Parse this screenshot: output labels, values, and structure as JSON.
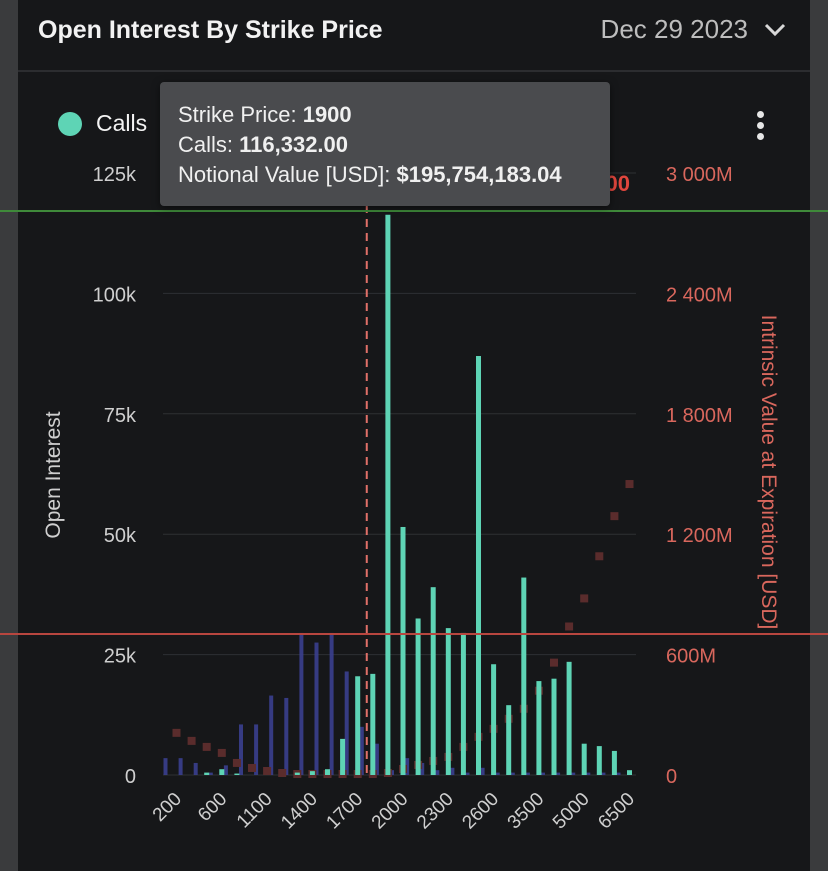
{
  "header": {
    "title": "Open Interest By Strike Price",
    "date": "Dec 29 2023"
  },
  "legend": {
    "calls_label": "Calls"
  },
  "tooltip": {
    "strike_label": "Strike Price: ",
    "strike_value": "1900",
    "calls_label": "Calls: ",
    "calls_value": "116,332.00",
    "notional_label": "Notional Value [USD]: ",
    "notional_value": "$195,754,183.04",
    "obscured_fragment": "00"
  },
  "colors": {
    "calls": "#5ed4b5",
    "puts": "#3a3f8f",
    "intrinsic": "#5a2c2c",
    "accent_red": "#d9675d",
    "green_line": "#3f8a3a"
  },
  "chart_data": {
    "type": "bar",
    "title": "Open Interest By Strike Price",
    "ylabel": "Open Interest",
    "y2label": "Intrinsic Value at Expiration [USD]",
    "ylim": [
      0,
      125000
    ],
    "y2lim": [
      0,
      3000
    ],
    "yticks": [
      {
        "v": 0,
        "label": "0"
      },
      {
        "v": 25000,
        "label": "25k"
      },
      {
        "v": 50000,
        "label": "50k"
      },
      {
        "v": 75000,
        "label": "75k"
      },
      {
        "v": 100000,
        "label": "100k"
      },
      {
        "v": 125000,
        "label": "125k"
      }
    ],
    "y2ticks": [
      {
        "v": 0,
        "label": "0"
      },
      {
        "v": 600,
        "label": "600M"
      },
      {
        "v": 1200,
        "label": "1 200M"
      },
      {
        "v": 1800,
        "label": "1 800M"
      },
      {
        "v": 2400,
        "label": "2 400M"
      },
      {
        "v": 3000,
        "label": "3 000M"
      }
    ],
    "xtick_labels": [
      {
        "idx": 0,
        "label": "200"
      },
      {
        "idx": 3,
        "label": "600"
      },
      {
        "idx": 6,
        "label": "1100"
      },
      {
        "idx": 9,
        "label": "1400"
      },
      {
        "idx": 12,
        "label": "1700"
      },
      {
        "idx": 15,
        "label": "2000"
      },
      {
        "idx": 18,
        "label": "2300"
      },
      {
        "idx": 21,
        "label": "2600"
      },
      {
        "idx": 24,
        "label": "3500"
      },
      {
        "idx": 27,
        "label": "5000"
      },
      {
        "idx": 30,
        "label": "6500"
      }
    ],
    "current_price_idx": 12.6,
    "calls": [
      0,
      0,
      500,
      1200,
      300,
      0,
      0,
      0,
      500,
      800,
      1200,
      7500,
      20500,
      21000,
      116332,
      51500,
      32500,
      39000,
      30500,
      29500,
      87000,
      23000,
      14500,
      41000,
      19500,
      20000,
      23500,
      6500,
      6000,
      5000,
      1000
    ],
    "puts": [
      3500,
      3500,
      2500,
      500,
      2000,
      10500,
      10500,
      16500,
      16000,
      29500,
      27500,
      29500,
      21500,
      10000,
      6500,
      1000,
      3500,
      2500,
      1000,
      1500,
      500,
      1500,
      500,
      500,
      500,
      500,
      500,
      500,
      500,
      500,
      500
    ],
    "intrinsic": [
      210,
      170,
      140,
      110,
      60,
      35,
      20,
      10,
      5,
      5,
      5,
      5,
      5,
      5,
      10,
      30,
      50,
      70,
      90,
      140,
      190,
      230,
      280,
      330,
      420,
      560,
      740,
      880,
      1090,
      1290,
      1450
    ]
  }
}
